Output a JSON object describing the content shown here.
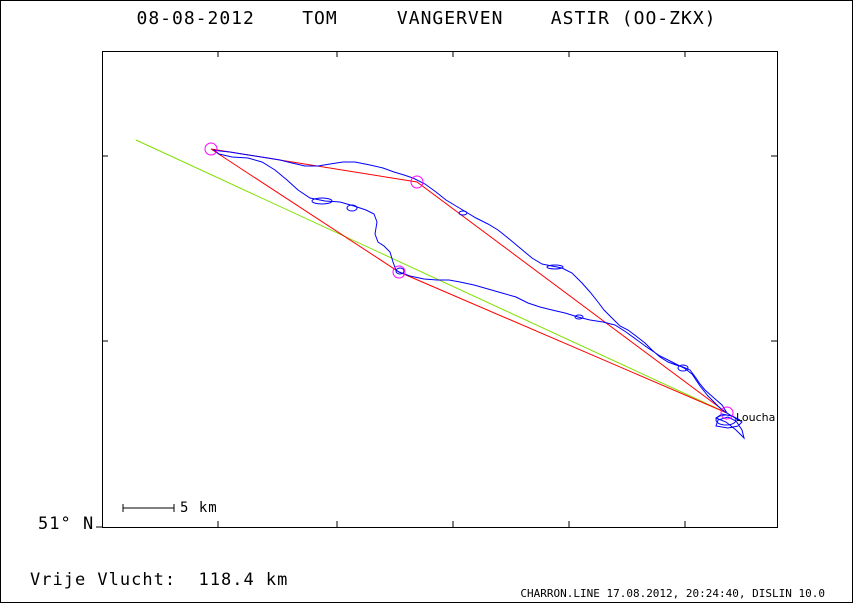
{
  "header": {
    "title": "08-08-2012    TOM     VANGERVEN    ASTIR (OO-ZKX)"
  },
  "map": {
    "latitude_label": "51° N",
    "scale_label": "5 km",
    "airfield_label": "Loucha",
    "colors": {
      "flight_track": "#0000ff",
      "task_legs": "#ff0000",
      "turnpoints": "#ff00ff",
      "declared_line": "#80e000",
      "frame": "#000000"
    }
  },
  "summary": {
    "free_flight": "Vrije Vlucht:  118.4 km"
  },
  "footer": {
    "credits": "CHARRON.LINE 17.08.2012, 20:24:40, DISLIN 10.0"
  }
}
